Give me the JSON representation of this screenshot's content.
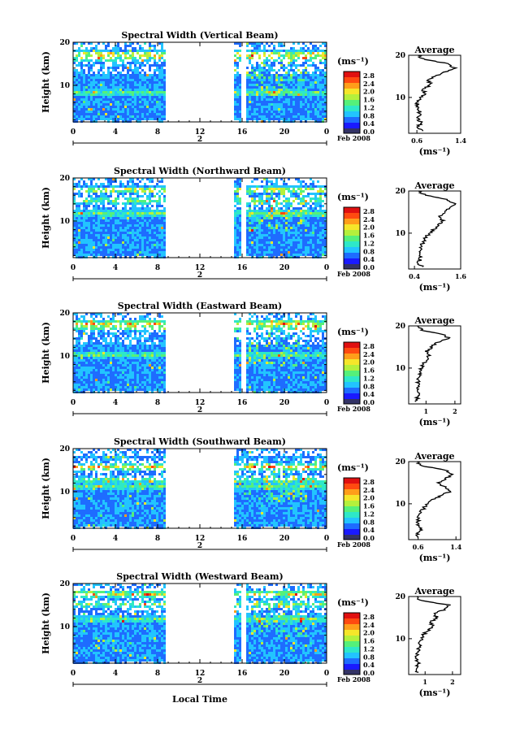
{
  "figure": {
    "xlabel": "Local Time",
    "colorbar_unit": "(ms⁻¹)",
    "colorbar_ticks": [
      "2.8",
      "2.4",
      "2.0",
      "1.6",
      "1.2",
      "0.8",
      "0.4",
      "0.0"
    ],
    "colorbar_range": [
      0.0,
      3.0
    ],
    "colormap": [
      "#1a1aff",
      "#1e6cff",
      "#22c4ff",
      "#2ee8c8",
      "#55f07a",
      "#b4f03c",
      "#f5e62a",
      "#ff9e1a",
      "#ff4a10",
      "#e01010"
    ],
    "no_data_color": "#ffffff",
    "low_value_color": "#333366"
  },
  "chart_data": [
    {
      "type": "heatmap",
      "title": "Spectral Width (Vertical Beam)",
      "ylabel": "Height (km)",
      "xlabel": "",
      "x_ticks": [
        "0",
        "4",
        "8",
        "12",
        "16",
        "20",
        "0"
      ],
      "y_ticks": [
        "10",
        "20"
      ],
      "xlim": [
        0,
        24
      ],
      "ylim": [
        1.5,
        20
      ],
      "date_marker": "2",
      "date_label": "Feb 2008",
      "gaps": [
        [
          8.7,
          15.1
        ],
        [
          15.9,
          16.2
        ]
      ],
      "high_layers_km": [
        17.5,
        16.5,
        8.5
      ],
      "profile": {
        "title": "Average",
        "xlabel": "(ms⁻¹)",
        "x_ticks": [
          "0.6",
          "1.4"
        ],
        "xlim": [
          0.45,
          1.4
        ],
        "y_ticks": [
          "10",
          "20"
        ],
        "height": [
          2,
          3,
          4,
          5,
          6,
          7,
          8,
          9,
          10,
          11,
          12,
          13,
          14,
          15,
          16,
          17,
          18,
          19,
          20
        ],
        "value": [
          0.7,
          0.62,
          0.68,
          0.62,
          0.66,
          0.64,
          0.6,
          0.62,
          0.68,
          0.74,
          0.72,
          0.86,
          0.8,
          0.92,
          1.1,
          1.28,
          1.18,
          0.72,
          0.62
        ]
      }
    },
    {
      "type": "heatmap",
      "title": "Spectral Width (Northward Beam)",
      "ylabel": "Height (km)",
      "xlabel": "",
      "x_ticks": [
        "0",
        "4",
        "8",
        "12",
        "16",
        "20",
        "0"
      ],
      "y_ticks": [
        "10",
        "20"
      ],
      "xlim": [
        0,
        24
      ],
      "ylim": [
        1.5,
        20
      ],
      "date_marker": "2",
      "date_label": "Feb 2008",
      "gaps": [
        [
          8.7,
          15.1
        ],
        [
          15.9,
          16.2
        ]
      ],
      "high_layers_km": [
        17.5,
        15,
        12
      ],
      "profile": {
        "title": "Average",
        "xlabel": "(ms⁻¹)",
        "x_ticks": [
          "0.4",
          "1.6"
        ],
        "xlim": [
          0.25,
          1.6
        ],
        "y_ticks": [
          "10",
          "20"
        ],
        "height": [
          2,
          3,
          4,
          5,
          6,
          7,
          8,
          9,
          10,
          11,
          12,
          13,
          14,
          15,
          16,
          17,
          18,
          19,
          20
        ],
        "value": [
          0.6,
          0.5,
          0.56,
          0.5,
          0.55,
          0.58,
          0.62,
          0.7,
          0.78,
          0.92,
          1.05,
          1.12,
          1.05,
          1.2,
          1.3,
          1.45,
          1.25,
          0.7,
          0.5
        ]
      }
    },
    {
      "type": "heatmap",
      "title": "Spectral Width (Eastward Beam)",
      "ylabel": "Height (km)",
      "xlabel": "",
      "x_ticks": [
        "0",
        "4",
        "8",
        "12",
        "16",
        "20",
        "0"
      ],
      "y_ticks": [
        "10",
        "20"
      ],
      "xlim": [
        0,
        24
      ],
      "ylim": [
        1.5,
        20
      ],
      "date_marker": "2",
      "date_label": "Feb 2008",
      "gaps": [
        [
          8.7,
          15.1
        ],
        [
          15.9,
          16.2
        ]
      ],
      "high_layers_km": [
        17.8,
        16.8,
        10.5
      ],
      "profile": {
        "title": "Average",
        "xlabel": "(ms⁻¹)",
        "x_ticks": [
          "1",
          "2"
        ],
        "xlim": [
          0.4,
          2.2
        ],
        "y_ticks": [
          "10",
          "20"
        ],
        "height": [
          2,
          3,
          4,
          5,
          6,
          7,
          8,
          9,
          10,
          11,
          12,
          13,
          14,
          15,
          16,
          17,
          18,
          19,
          20
        ],
        "value": [
          0.7,
          0.68,
          0.8,
          0.7,
          0.72,
          0.74,
          0.76,
          0.78,
          0.82,
          0.9,
          1.05,
          1.1,
          1.0,
          1.2,
          1.35,
          1.8,
          1.55,
          0.85,
          0.7
        ]
      }
    },
    {
      "type": "heatmap",
      "title": "Spectral Width (Southward Beam)",
      "ylabel": "Height (km)",
      "xlabel": "",
      "x_ticks": [
        "0",
        "4",
        "8",
        "12",
        "16",
        "20",
        "0"
      ],
      "y_ticks": [
        "10",
        "20"
      ],
      "xlim": [
        0,
        24
      ],
      "ylim": [
        1.5,
        20
      ],
      "date_marker": "2",
      "date_label": "Feb 2008",
      "gaps": [
        [
          8.7,
          15.1
        ]
      ],
      "high_layers_km": [
        16,
        13,
        11.5
      ],
      "profile": {
        "title": "Average",
        "xlabel": "(ms⁻¹)",
        "x_ticks": [
          "0.6",
          "1.4"
        ],
        "xlim": [
          0.4,
          1.5
        ],
        "y_ticks": [
          "10",
          "20"
        ],
        "height": [
          2,
          3,
          4,
          5,
          6,
          7,
          8,
          9,
          10,
          11,
          12,
          13,
          14,
          15,
          16,
          17,
          18,
          19,
          20
        ],
        "value": [
          0.62,
          0.56,
          0.66,
          0.58,
          0.6,
          0.62,
          0.66,
          0.72,
          0.8,
          0.92,
          1.1,
          1.3,
          1.15,
          1.05,
          1.2,
          1.3,
          1.2,
          0.65,
          0.58
        ]
      }
    },
    {
      "type": "heatmap",
      "title": "Spectral Width (Westward Beam)",
      "ylabel": "Height (km)",
      "xlabel": "Local Time",
      "x_ticks": [
        "0",
        "4",
        "8",
        "12",
        "16",
        "20",
        "0"
      ],
      "y_ticks": [
        "10",
        "20"
      ],
      "xlim": [
        0,
        24
      ],
      "ylim": [
        1.5,
        20
      ],
      "date_marker": "2",
      "date_label": "Feb 2008",
      "gaps": [
        [
          8.7,
          15.1
        ],
        [
          15.9,
          16.2
        ]
      ],
      "high_layers_km": [
        17.8,
        15.5,
        12
      ],
      "profile": {
        "title": "Average",
        "xlabel": "(ms⁻¹)",
        "x_ticks": [
          "1",
          "2"
        ],
        "xlim": [
          0.4,
          2.3
        ],
        "y_ticks": [
          "10",
          "20"
        ],
        "height": [
          2,
          3,
          4,
          5,
          6,
          7,
          8,
          9,
          10,
          11,
          12,
          13,
          14,
          15,
          16,
          17,
          18,
          19,
          20
        ],
        "value": [
          0.72,
          0.66,
          0.76,
          0.7,
          0.72,
          0.74,
          0.78,
          0.82,
          0.88,
          0.96,
          1.1,
          1.3,
          1.2,
          1.45,
          1.3,
          1.75,
          1.9,
          0.85,
          0.7
        ]
      }
    }
  ]
}
